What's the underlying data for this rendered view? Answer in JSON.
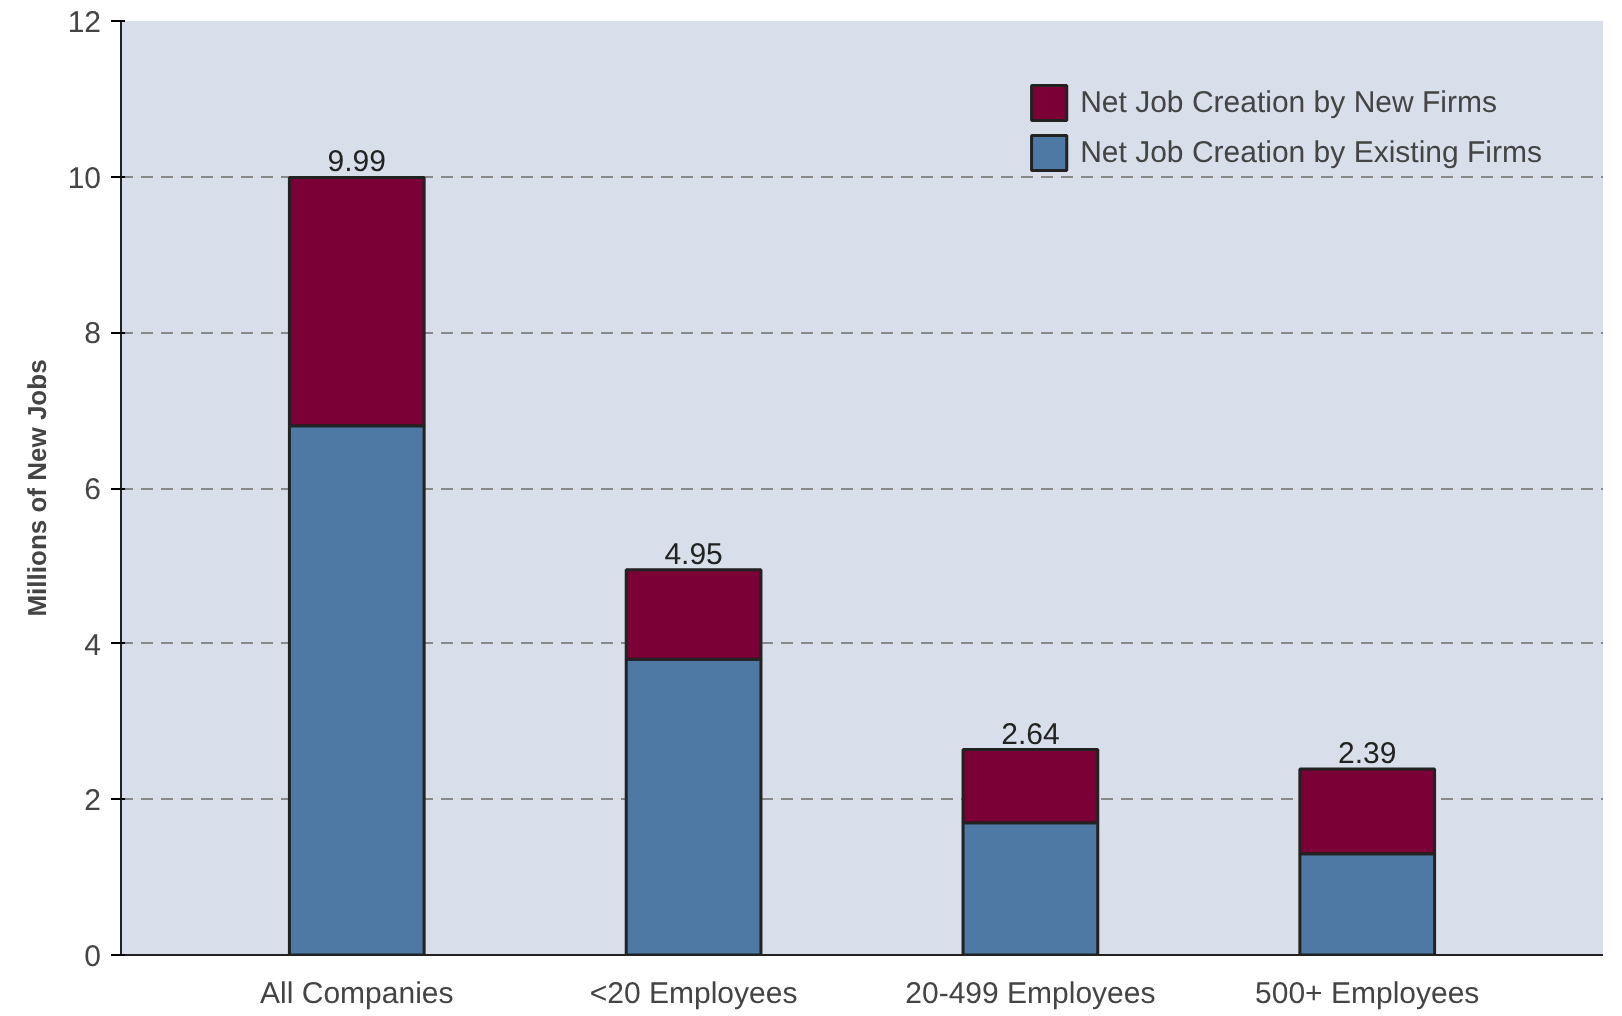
{
  "chart_data": {
    "type": "bar",
    "ylabel": "Millions of New Jobs",
    "categories": [
      "All Companies",
      "<20 Employees",
      "20-499 Employees",
      "500+ Employees"
    ],
    "stacked": true,
    "series": [
      {
        "name": "Net Job Creation by Existing Firms",
        "color": "#4d79a4",
        "values": [
          6.8,
          3.8,
          1.7,
          1.3
        ]
      },
      {
        "name": "Net Job Creation by New Firms",
        "color": "#7a0036",
        "values": [
          3.19,
          1.15,
          0.94,
          1.09
        ]
      }
    ],
    "totals": [
      "9.99",
      "4.95",
      "2.64",
      "2.39"
    ],
    "ylim": [
      0,
      12
    ],
    "yticks": [
      0,
      2,
      4,
      6,
      8,
      10,
      12
    ],
    "grid": "y",
    "legend": "top right"
  }
}
